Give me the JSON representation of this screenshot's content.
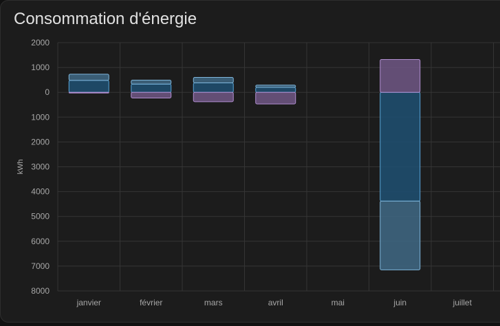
{
  "card": {
    "title": "Consommation d'énergie"
  },
  "chart_data": {
    "type": "bar",
    "stacked": true,
    "categories": [
      "janvier",
      "février",
      "mars",
      "avril",
      "mai",
      "juin",
      "juillet"
    ],
    "ylabel": "kWh",
    "xlabel": "",
    "ylim": [
      -8000,
      2000
    ],
    "yticks": [
      2000,
      1000,
      0,
      -1000,
      -2000,
      -3000,
      -4000,
      -5000,
      -6000,
      -7000,
      -8000
    ],
    "ytick_labels": [
      "2000",
      "1000",
      "0",
      "1000",
      "2000",
      "3000",
      "4000",
      "5000",
      "6000",
      "7000",
      "8000"
    ],
    "grid": true,
    "legend": "none",
    "series": [
      {
        "color": "#1f4e6e",
        "stroke": "#5aa6d9",
        "values": [
          480,
          330,
          380,
          200,
          null,
          -4380,
          null
        ]
      },
      {
        "color": "#3e6580",
        "stroke": "#7fb7dd",
        "values": [
          250,
          160,
          220,
          90,
          null,
          -2770,
          null
        ]
      },
      {
        "color": "#6b5480",
        "stroke": "#b28fd1",
        "values": [
          -30,
          -230,
          -380,
          -470,
          null,
          1320,
          null
        ]
      }
    ]
  }
}
